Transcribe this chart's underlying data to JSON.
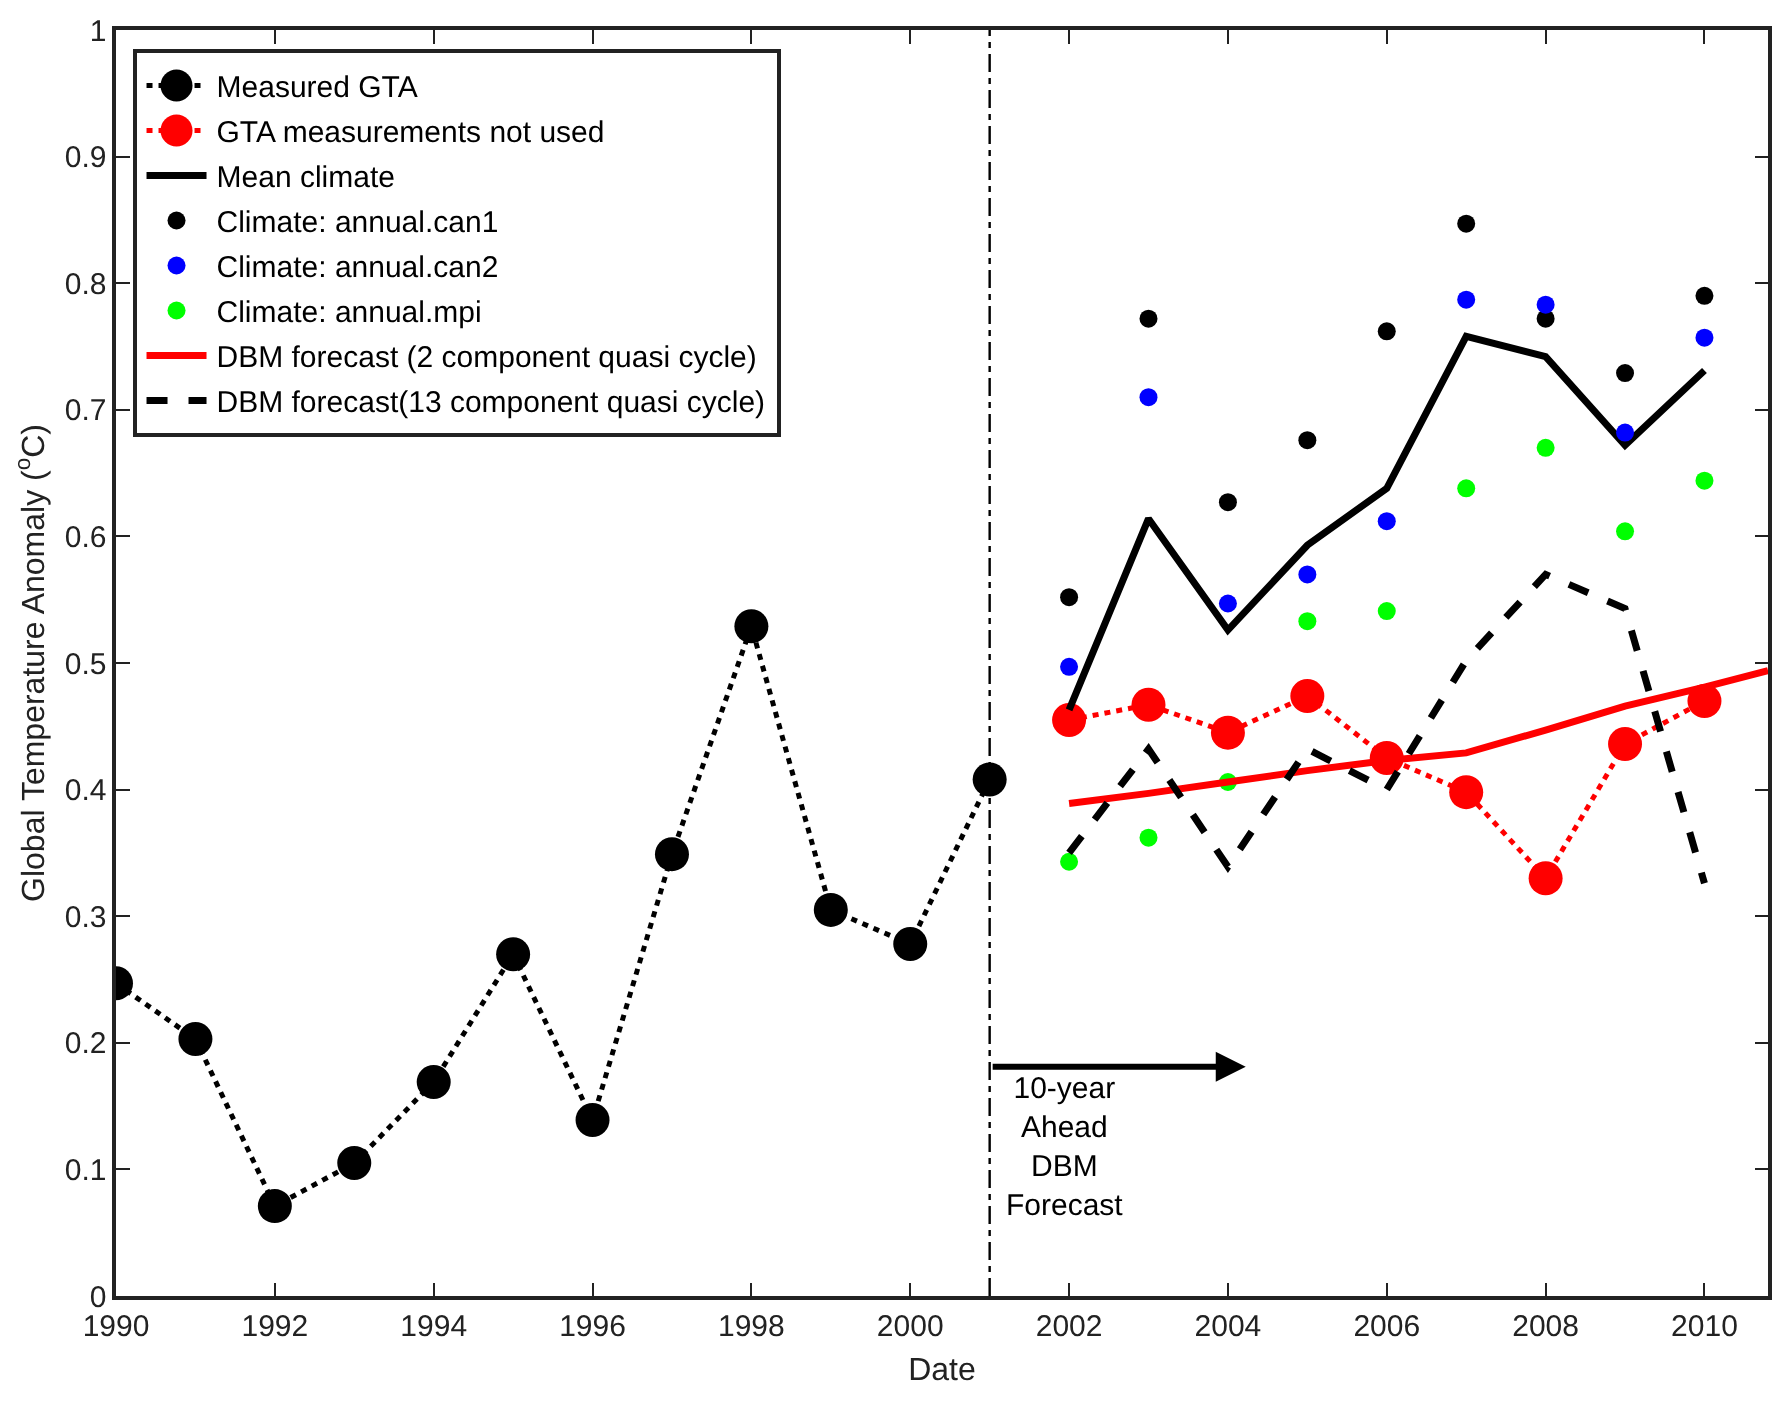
{
  "chart_data": {
    "type": "line",
    "xlabel": "Date",
    "ylabel": "Global Temperature Anomaly ($^{o}$C)",
    "xlim": [
      1990,
      2010.8
    ],
    "ylim": [
      0,
      1
    ],
    "xticks": [
      1990,
      1992,
      1994,
      1996,
      1998,
      2000,
      2002,
      2004,
      2006,
      2008,
      2010
    ],
    "yticks": [
      0,
      0.1,
      0.2,
      0.3,
      0.4,
      0.5,
      0.6,
      0.7,
      0.8,
      0.9,
      1
    ],
    "grid": false,
    "legend": "top left",
    "series": [
      {
        "name": "Measured GTA",
        "marker": "circle",
        "line_style": "dotted",
        "color": "#000000",
        "x": [
          1990,
          1991,
          1992,
          1993,
          1994,
          1995,
          1996,
          1997,
          1998,
          1999,
          2000,
          2001
        ],
        "values": [
          0.247,
          0.203,
          0.071,
          0.105,
          0.169,
          0.27,
          0.139,
          0.349,
          0.529,
          0.305,
          0.278,
          0.408
        ]
      },
      {
        "name": "GTA measurements not used",
        "marker": "circle",
        "line_style": "dotted",
        "color": "#ff0000",
        "x": [
          2002,
          2003,
          2004,
          2005,
          2006,
          2007,
          2008,
          2009,
          2010
        ],
        "values": [
          0.455,
          0.467,
          0.445,
          0.474,
          0.425,
          0.398,
          0.33,
          0.436,
          0.47
        ]
      },
      {
        "name": "Mean climate",
        "marker": "none",
        "line_style": "solid",
        "color": "#000000",
        "x": [
          2002,
          2003,
          2004,
          2005,
          2006,
          2007,
          2008,
          2009,
          2010
        ],
        "values": [
          0.463,
          0.614,
          0.526,
          0.593,
          0.638,
          0.758,
          0.742,
          0.672,
          0.731
        ]
      },
      {
        "name": "Climate: annual.can1",
        "type": "scatter",
        "marker": "circle",
        "color": "#000000",
        "x": [
          2002,
          2003,
          2004,
          2005,
          2006,
          2007,
          2008,
          2009,
          2010
        ],
        "values": [
          0.552,
          0.772,
          0.627,
          0.676,
          0.762,
          0.847,
          0.772,
          0.729,
          0.79
        ]
      },
      {
        "name": "Climate: annual.can2",
        "type": "scatter",
        "marker": "circle",
        "color": "#0000ff",
        "x": [
          2002,
          2003,
          2004,
          2005,
          2006,
          2007,
          2008,
          2009,
          2010
        ],
        "values": [
          0.497,
          0.71,
          0.547,
          0.57,
          0.612,
          0.787,
          0.783,
          0.682,
          0.757
        ]
      },
      {
        "name": "Climate: annual.mpi",
        "type": "scatter",
        "marker": "circle",
        "color": "#00ff00",
        "x": [
          2002,
          2003,
          2004,
          2005,
          2006,
          2007,
          2008,
          2009,
          2010
        ],
        "values": [
          0.343,
          0.362,
          0.406,
          0.533,
          0.541,
          0.638,
          0.67,
          0.604,
          0.644
        ]
      },
      {
        "name": "DBM forecast (2 component quasi cycle)",
        "marker": "none",
        "line_style": "solid",
        "color": "#ff0000",
        "x": [
          2002,
          2003,
          2004,
          2005,
          2006,
          2007,
          2008,
          2009,
          2010,
          2010.8
        ],
        "values": [
          0.389,
          0.397,
          0.406,
          0.415,
          0.423,
          0.429,
          0.447,
          0.466,
          0.481,
          0.494
        ]
      },
      {
        "name": "DBM forecast(13 component quasi cycle)",
        "marker": "none",
        "line_style": "dashed",
        "color": "#000000",
        "x": [
          2002,
          2003,
          2004,
          2005,
          2006,
          2007,
          2008,
          2009,
          2010
        ],
        "values": [
          0.35,
          0.432,
          0.339,
          0.432,
          0.4,
          0.502,
          0.57,
          0.543,
          0.326
        ]
      }
    ],
    "ref_lines": [
      {
        "axis": "x",
        "value": 2001,
        "line_style": "dashdot",
        "color": "#000000"
      }
    ],
    "annotations": [
      "10-year\nAhead\nDBM\nForecast"
    ]
  }
}
